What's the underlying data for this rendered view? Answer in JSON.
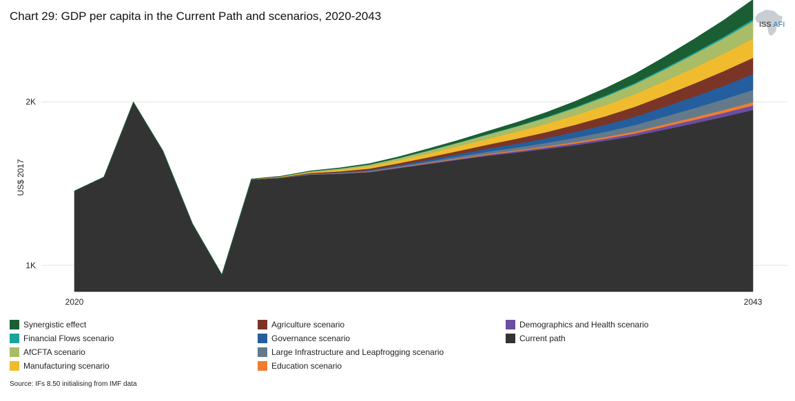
{
  "chart_data": {
    "type": "area",
    "title": "Chart 29: GDP per capita in the Current Path and scenarios, 2020-2043",
    "ylabel": "US$ 2017",
    "xlabel": "",
    "x": [
      2020,
      2021,
      2022,
      2023,
      2024,
      2025,
      2026,
      2027,
      2028,
      2029,
      2030,
      2031,
      2032,
      2033,
      2034,
      2035,
      2036,
      2037,
      2038,
      2039,
      2040,
      2041,
      2042,
      2043
    ],
    "x_ticks": [
      "2020",
      "2043"
    ],
    "y_ticks": [
      {
        "value": 1000,
        "label": "1K"
      },
      {
        "value": 2000,
        "label": "2K"
      }
    ],
    "ylim": [
      840,
      2370
    ],
    "stack_order": [
      "Current path",
      "Demographics and Health scenario",
      "Education scenario",
      "Large Infrastructure and Leapfrogging scenario",
      "Governance scenario",
      "Agriculture scenario",
      "Manufacturing scenario",
      "AfCFTA scenario",
      "Financial Flows scenario",
      "Synergistic effect"
    ],
    "series": [
      {
        "name": "Current path",
        "color": "#333333",
        "values": [
          1455,
          1540,
          1998,
          1700,
          1255,
          943,
          1525,
          1535,
          1555,
          1560,
          1570,
          1595,
          1620,
          1645,
          1670,
          1690,
          1712,
          1735,
          1762,
          1792,
          1830,
          1868,
          1908,
          1950
        ]
      },
      {
        "name": "Demographics and Health scenario",
        "color": "#6a4ea0",
        "values": [
          0,
          0,
          0,
          0,
          0,
          0,
          0,
          0,
          1,
          2,
          2,
          3,
          4,
          5,
          6,
          8,
          9,
          11,
          13,
          15,
          18,
          21,
          24,
          28
        ]
      },
      {
        "name": "Education scenario",
        "color": "#f07c30",
        "values": [
          0,
          0,
          0,
          0,
          0,
          0,
          0,
          0,
          1,
          1,
          2,
          2,
          3,
          4,
          5,
          6,
          7,
          9,
          10,
          12,
          14,
          16,
          18,
          20
        ]
      },
      {
        "name": "Large Infrastructure and Leapfrogging scenario",
        "color": "#637a8b",
        "values": [
          0,
          0,
          0,
          0,
          0,
          0,
          0,
          1,
          2,
          3,
          4,
          6,
          8,
          11,
          14,
          17,
          21,
          26,
          32,
          39,
          47,
          56,
          65,
          75
        ]
      },
      {
        "name": "Governance scenario",
        "color": "#245e9e",
        "values": [
          0,
          0,
          0,
          0,
          0,
          0,
          0,
          1,
          2,
          3,
          5,
          7,
          10,
          14,
          18,
          23,
          29,
          36,
          43,
          51,
          60,
          70,
          82,
          96
        ]
      },
      {
        "name": "Agriculture scenario",
        "color": "#7a3526",
        "values": [
          0,
          0,
          0,
          0,
          0,
          0,
          1,
          2,
          4,
          6,
          9,
          12,
          16,
          20,
          25,
          31,
          37,
          44,
          52,
          61,
          70,
          80,
          90,
          100
        ]
      },
      {
        "name": "Manufacturing scenario",
        "color": "#f0bc2e",
        "values": [
          0,
          0,
          0,
          0,
          0,
          0,
          1,
          3,
          6,
          10,
          14,
          18,
          23,
          29,
          35,
          42,
          50,
          58,
          67,
          76,
          86,
          96,
          106,
          117
        ]
      },
      {
        "name": "AfCFTA scenario",
        "color": "#a9bc66",
        "values": [
          0,
          0,
          0,
          0,
          0,
          0,
          1,
          2,
          4,
          7,
          10,
          13,
          17,
          21,
          26,
          32,
          38,
          45,
          53,
          62,
          72,
          83,
          94,
          106
        ]
      },
      {
        "name": "Financial Flows scenario",
        "color": "#1aa39b",
        "values": [
          0,
          0,
          0,
          0,
          0,
          0,
          0,
          0,
          0,
          1,
          1,
          1,
          2,
          2,
          3,
          3,
          4,
          5,
          6,
          7,
          8,
          9,
          10,
          12
        ]
      },
      {
        "name": "Synergistic effect",
        "color": "#1b5e34",
        "values": [
          0,
          0,
          0,
          0,
          0,
          0,
          0,
          1,
          2,
          3,
          5,
          7,
          10,
          13,
          17,
          22,
          28,
          35,
          44,
          55,
          68,
          83,
          100,
          120
        ]
      }
    ],
    "legend": {
      "placement": "bottom",
      "columns": [
        [
          "Synergistic effect",
          "Financial Flows scenario",
          "AfCFTA scenario",
          "Manufacturing scenario"
        ],
        [
          "Agriculture scenario",
          "Governance scenario",
          "Large Infrastructure and Leapfrogging scenario",
          "Education scenario"
        ],
        [
          "Demographics and Health scenario",
          "Current path"
        ]
      ]
    },
    "grid": true
  },
  "logo": {
    "text_primary": "ISS",
    "text_secondary": "AFI"
  },
  "source": "Source: IFs 8.50 initialising from IMF data"
}
